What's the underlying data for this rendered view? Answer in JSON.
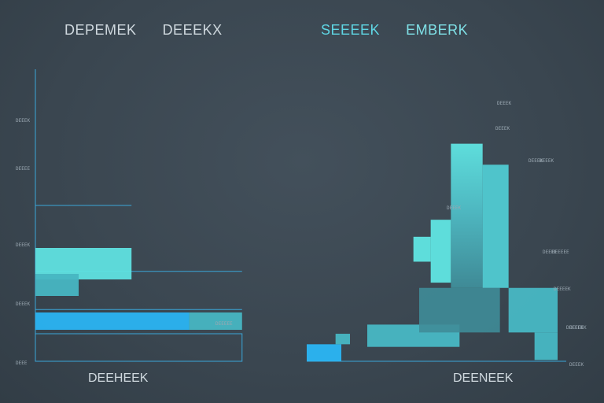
{
  "left_panel": {
    "title_a": "DEPEMEK",
    "title_b": "DEEEKX",
    "xlabel": "DEEHEEK"
  },
  "right_panel": {
    "title_a": "SEEEEK",
    "title_b": "EMBERK",
    "xlabel": "DEENEEK"
  },
  "colors": {
    "cyan": "#2ab4f2",
    "teal_light": "#5fe2e0",
    "teal_mid": "#47b6c2",
    "teal_dark": "#3f8c98",
    "axis": "#3ba6d8",
    "tick_text": "#9aa7b1"
  },
  "chart_data": [
    {
      "type": "bar",
      "orientation": "horizontal",
      "title": "DEPEMEK DEEEKX",
      "xlabel": "DEEHEEK",
      "ylabel": "",
      "tick_labels": [
        "DEEEK",
        "DEEEE",
        "DEEEK",
        "DEEEK",
        "DEEE"
      ],
      "annotations": [
        "DEEEEE"
      ],
      "bars": [
        {
          "row": 1,
          "value": 2.0,
          "segments": [
            {
              "value": 2.0,
              "color": "#5fe2e0"
            }
          ]
        },
        {
          "row": 2,
          "value": 0.9,
          "segments": [
            {
              "value": 0.9,
              "color": "#47b6c2"
            }
          ]
        },
        {
          "row": 3,
          "value": 4.3,
          "segments": [
            {
              "value": 3.2,
              "color": "#2ab4f2"
            },
            {
              "value": 1.1,
              "color": "#47b6c2"
            }
          ]
        }
      ],
      "reference_lines": [
        {
          "row": 0,
          "value": 2.0
        },
        {
          "row": 1.55,
          "value": 4.3
        },
        {
          "row": 2.45,
          "value": 4.3
        }
      ],
      "xlim": [
        0,
        4.5
      ]
    },
    {
      "type": "bar",
      "orientation": "vertical",
      "title": "SEEEEK EMBERK",
      "xlabel": "DEENEEK",
      "ylabel": "",
      "tick_labels": [
        "DEEEEK",
        "DEEEEK",
        "DEEEEE",
        "DEEEK",
        "DEEEK"
      ],
      "annotations": [
        "DEEEK",
        "DEEEK",
        "DEEEK",
        "DEEEE",
        "DEEEK",
        "DEEEEK"
      ],
      "rects": [
        {
          "x0": 0.0,
          "x1": 1.2,
          "y0": 0,
          "y1": 1.3,
          "color": "#2ab4f2"
        },
        {
          "x0": 1.0,
          "x1": 1.5,
          "y0": 1.3,
          "y1": 2.1,
          "color": "#47b6c2"
        },
        {
          "x0": 2.1,
          "x1": 5.3,
          "y0": 1.1,
          "y1": 2.8,
          "color": "#47b6c2"
        },
        {
          "x0": 3.9,
          "x1": 6.7,
          "y0": 2.2,
          "y1": 5.6,
          "color": "#3f8c98"
        },
        {
          "x0": 3.7,
          "x1": 4.3,
          "y0": 7.6,
          "y1": 9.5,
          "color": "#5fe2e0"
        },
        {
          "x0": 4.3,
          "x1": 5.0,
          "y0": 6.0,
          "y1": 10.8,
          "color": "#5fe2e0"
        },
        {
          "x0": 5.0,
          "x1": 6.1,
          "y0": 5.6,
          "y1": 16.6,
          "color": "#5fe2e0"
        },
        {
          "x0": 6.1,
          "x1": 7.0,
          "y0": 5.6,
          "y1": 15.0,
          "color": "#4fc8cf"
        },
        {
          "x0": 7.0,
          "x1": 8.7,
          "y0": 2.2,
          "y1": 5.6,
          "color": "#47b6c2"
        },
        {
          "x0": 7.9,
          "x1": 8.7,
          "y0": 0.1,
          "y1": 2.2,
          "color": "#47b6c2"
        }
      ],
      "xlim": [
        0,
        9
      ],
      "ylim": [
        0,
        20
      ]
    }
  ]
}
